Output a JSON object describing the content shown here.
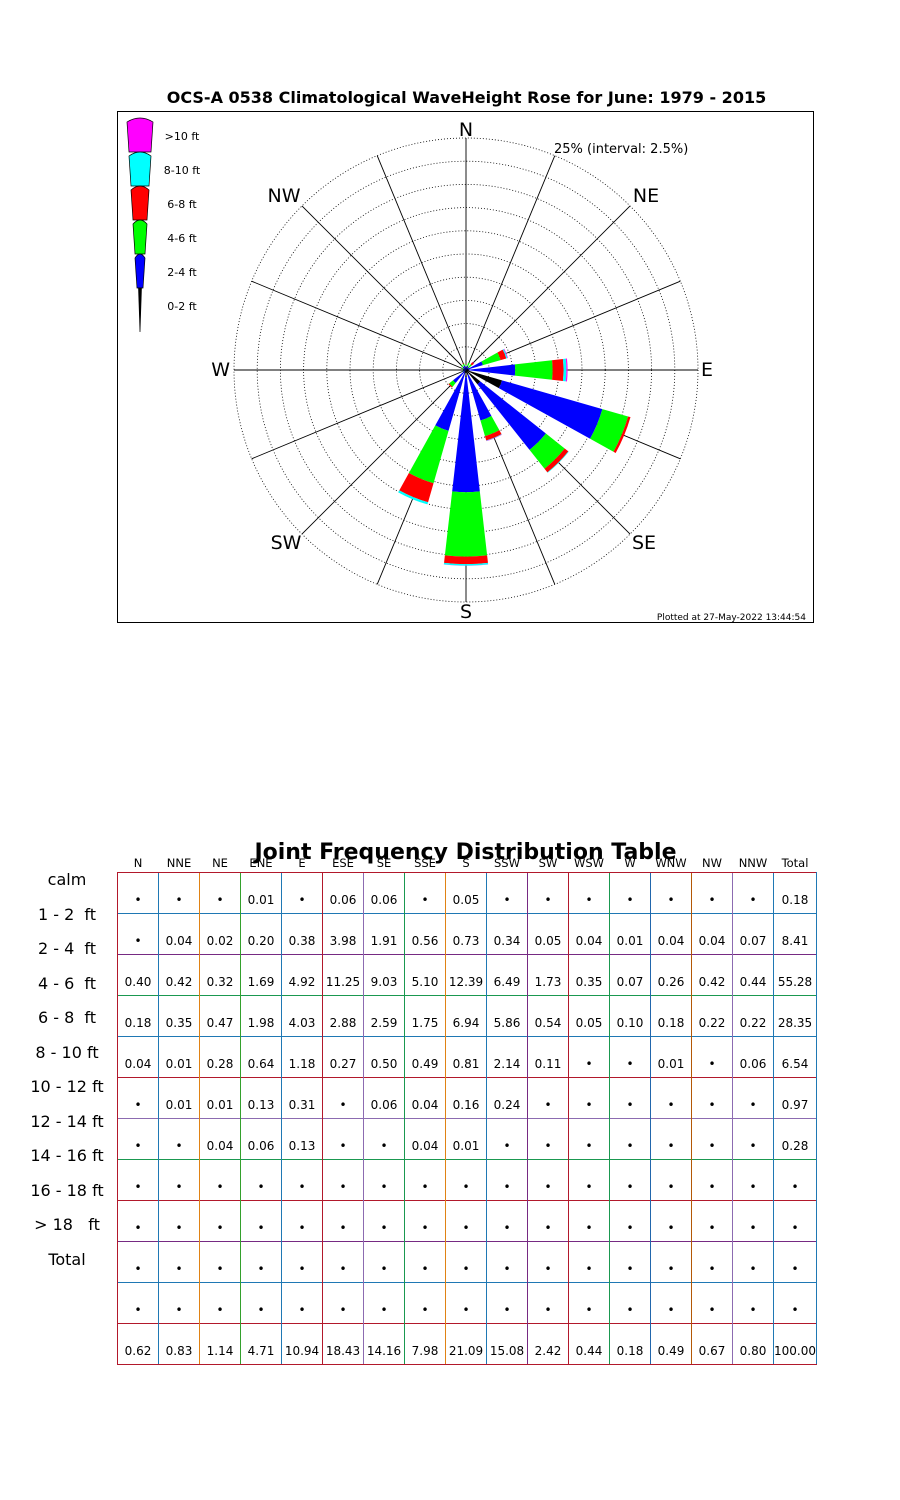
{
  "rose": {
    "title": "OCS-A 0538 Climatological WaveHeight Rose for June: 1979 - 2015",
    "interval_label": "25% (interval: 2.5%)",
    "plotted_at": "Plotted at 27-May-2022 13:44:54",
    "cardinal_labels": {
      "N": "N",
      "NE": "NE",
      "E": "E",
      "SE": "SE",
      "S": "S",
      "SW": "SW",
      "W": "W",
      "NW": "NW"
    }
  },
  "chart_data": {
    "type": "wind-rose",
    "title": "OCS-A 0538 Climatological WaveHeight Rose for June: 1979 - 2015",
    "radial_max_percent": 25,
    "radial_interval_percent": 2.5,
    "directions": [
      "N",
      "NNE",
      "NE",
      "ENE",
      "E",
      "ESE",
      "SE",
      "SSE",
      "S",
      "SSW",
      "SW",
      "WSW",
      "W",
      "WNW",
      "NW",
      "NNW"
    ],
    "bins": [
      {
        "label": ">10 ft",
        "color": "#ff00ff"
      },
      {
        "label": "8-10 ft",
        "color": "#00ffff"
      },
      {
        "label": "6-8 ft",
        "color": "#ff0000"
      },
      {
        "label": "4-6 ft",
        "color": "#00ff00"
      },
      {
        "label": "2-4 ft",
        "color": "#0000ff"
      },
      {
        "label": "0-2 ft",
        "color": "#000000"
      }
    ],
    "stack_order": [
      "0-2 ft",
      "2-4 ft",
      "4-6 ft",
      "6-8 ft",
      "8-10 ft",
      ">10 ft"
    ],
    "rose_values": {
      "0-2 ft": [
        0.0,
        0.04,
        0.02,
        0.21,
        0.38,
        4.04,
        1.97,
        0.56,
        0.78,
        0.34,
        0.05,
        0.04,
        0.01,
        0.04,
        0.04,
        0.07
      ],
      "2-4 ft": [
        0.4,
        0.42,
        0.32,
        1.69,
        4.92,
        11.25,
        9.03,
        5.1,
        12.39,
        6.49,
        1.73,
        0.35,
        0.07,
        0.26,
        0.42,
        0.44
      ],
      "4-6 ft": [
        0.18,
        0.35,
        0.47,
        1.98,
        4.03,
        2.88,
        2.59,
        1.75,
        6.94,
        5.86,
        0.54,
        0.05,
        0.1,
        0.18,
        0.22,
        0.22
      ],
      "6-8 ft": [
        0.04,
        0.01,
        0.28,
        0.64,
        1.18,
        0.27,
        0.5,
        0.49,
        0.81,
        2.14,
        0.11,
        0.0,
        0.0,
        0.01,
        0.0,
        0.06
      ],
      "8-10 ft": [
        0.0,
        0.01,
        0.01,
        0.13,
        0.31,
        0.0,
        0.06,
        0.04,
        0.16,
        0.24,
        0.0,
        0.0,
        0.0,
        0.0,
        0.0,
        0.0
      ],
      ">10 ft": [
        0.0,
        0.0,
        0.04,
        0.06,
        0.13,
        0.0,
        0.0,
        0.04,
        0.01,
        0.0,
        0.0,
        0.0,
        0.0,
        0.0,
        0.0,
        0.0
      ]
    }
  },
  "table": {
    "title": "Joint Frequency Distribution Table",
    "headers": [
      "N",
      "NNE",
      "NE",
      "ENE",
      "E",
      "ESE",
      "SE",
      "SSE",
      "S",
      "SSW",
      "SW",
      "WSW",
      "W",
      "WNW",
      "NW",
      "NNW",
      "Total"
    ],
    "rows": [
      {
        "label": "calm",
        "values": [
          "•",
          "•",
          "•",
          "0.01",
          "•",
          "0.06",
          "0.06",
          "•",
          "0.05",
          "•",
          "•",
          "•",
          "•",
          "•",
          "•",
          "•",
          "0.18"
        ]
      },
      {
        "label": "1 - 2  ft",
        "values": [
          "•",
          "0.04",
          "0.02",
          "0.20",
          "0.38",
          "3.98",
          "1.91",
          "0.56",
          "0.73",
          "0.34",
          "0.05",
          "0.04",
          "0.01",
          "0.04",
          "0.04",
          "0.07",
          "8.41"
        ]
      },
      {
        "label": "2 - 4  ft",
        "values": [
          "0.40",
          "0.42",
          "0.32",
          "1.69",
          "4.92",
          "11.25",
          "9.03",
          "5.10",
          "12.39",
          "6.49",
          "1.73",
          "0.35",
          "0.07",
          "0.26",
          "0.42",
          "0.44",
          "55.28"
        ]
      },
      {
        "label": "4 - 6  ft",
        "values": [
          "0.18",
          "0.35",
          "0.47",
          "1.98",
          "4.03",
          "2.88",
          "2.59",
          "1.75",
          "6.94",
          "5.86",
          "0.54",
          "0.05",
          "0.10",
          "0.18",
          "0.22",
          "0.22",
          "28.35"
        ]
      },
      {
        "label": "6 - 8  ft",
        "values": [
          "0.04",
          "0.01",
          "0.28",
          "0.64",
          "1.18",
          "0.27",
          "0.50",
          "0.49",
          "0.81",
          "2.14",
          "0.11",
          "•",
          "•",
          "0.01",
          "•",
          "0.06",
          "6.54"
        ]
      },
      {
        "label": "8 - 10 ft",
        "values": [
          "•",
          "0.01",
          "0.01",
          "0.13",
          "0.31",
          "•",
          "0.06",
          "0.04",
          "0.16",
          "0.24",
          "•",
          "•",
          "•",
          "•",
          "•",
          "•",
          "0.97"
        ]
      },
      {
        "label": "10 - 12 ft",
        "values": [
          "•",
          "•",
          "0.04",
          "0.06",
          "0.13",
          "•",
          "•",
          "0.04",
          "0.01",
          "•",
          "•",
          "•",
          "•",
          "•",
          "•",
          "•",
          "0.28"
        ]
      },
      {
        "label": "12 - 14 ft",
        "values": [
          "•",
          "•",
          "•",
          "•",
          "•",
          "•",
          "•",
          "•",
          "•",
          "•",
          "•",
          "•",
          "•",
          "•",
          "•",
          "•",
          "•"
        ]
      },
      {
        "label": "14 - 16 ft",
        "values": [
          "•",
          "•",
          "•",
          "•",
          "•",
          "•",
          "•",
          "•",
          "•",
          "•",
          "•",
          "•",
          "•",
          "•",
          "•",
          "•",
          "•"
        ]
      },
      {
        "label": "16 - 18 ft",
        "values": [
          "•",
          "•",
          "•",
          "•",
          "•",
          "•",
          "•",
          "•",
          "•",
          "•",
          "•",
          "•",
          "•",
          "•",
          "•",
          "•",
          "•"
        ]
      },
      {
        "label": "> 18   ft",
        "values": [
          "•",
          "•",
          "•",
          "•",
          "•",
          "•",
          "•",
          "•",
          "•",
          "•",
          "•",
          "•",
          "•",
          "•",
          "•",
          "•",
          "•"
        ]
      },
      {
        "label": "Total",
        "values": [
          "0.62",
          "0.83",
          "1.14",
          "4.71",
          "10.94",
          "18.43",
          "14.16",
          "7.98",
          "21.09",
          "15.08",
          "2.42",
          "0.44",
          "0.18",
          "0.49",
          "0.67",
          "0.80",
          "100.00"
        ]
      }
    ],
    "column_colors": [
      "#b2182b",
      "#1f78b4",
      "#e08214",
      "#33a02c",
      "#1f78b4",
      "#b2182b",
      "#8c6bb1",
      "#1a9850",
      "#e08214",
      "#1f78b4",
      "#762a83",
      "#b2182b",
      "#1a9850",
      "#2166ac",
      "#b35806",
      "#8c6bb1",
      "#1f78b4"
    ],
    "row_colors": [
      "#b2182b",
      "#1f78b4",
      "#762a83",
      "#1a9850",
      "#1f78b4",
      "#b2182b",
      "#8c6bb1",
      "#1a9850",
      "#b2182b",
      "#762a83",
      "#1f78b4",
      "#b2182b"
    ]
  }
}
